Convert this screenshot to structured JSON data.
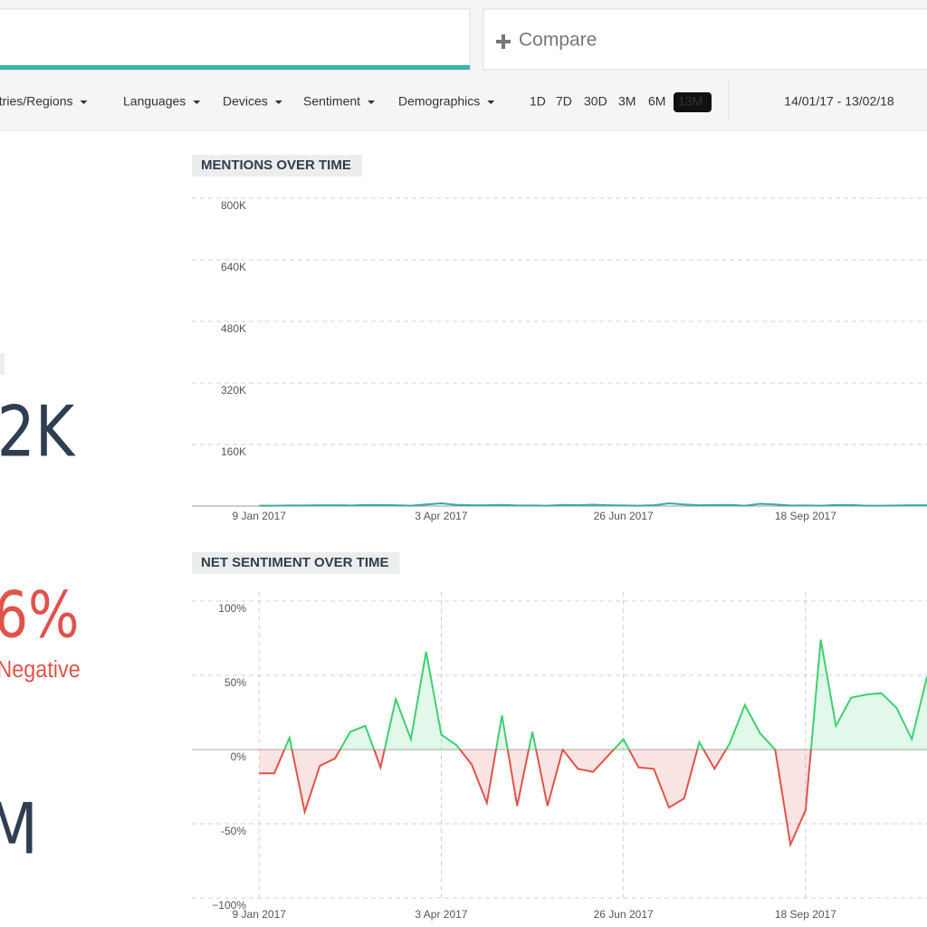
{
  "compare": "Compare",
  "filters": [
    "ntries/Regions",
    "Languages",
    "Devices",
    "Sentiment",
    "Demographics"
  ],
  "ranges": [
    {
      "label": "1D"
    },
    {
      "label": "7D"
    },
    {
      "label": "30D"
    },
    {
      "label": "3M"
    },
    {
      "label": "6M"
    },
    {
      "label": "13M",
      "selected": true
    }
  ],
  "date_range": "14/01/17 - 13/02/18",
  "summary": {
    "mentions": "2K",
    "sentiment": "6%",
    "sentiment_label": "Negative",
    "reach": "M"
  },
  "chart_data": [
    {
      "type": "line",
      "title": "MENTIONS OVER TIME",
      "x": [
        "2017-01-09",
        "2017-01-16",
        "2017-01-23",
        "2017-01-30",
        "2017-02-06",
        "2017-02-13",
        "2017-02-20",
        "2017-02-27",
        "2017-03-06",
        "2017-03-13",
        "2017-03-20",
        "2017-03-27",
        "2017-04-03",
        "2017-04-10",
        "2017-04-17",
        "2017-04-24",
        "2017-05-01",
        "2017-05-08",
        "2017-05-15",
        "2017-05-22",
        "2017-05-29",
        "2017-06-05",
        "2017-06-12",
        "2017-06-19",
        "2017-06-26",
        "2017-07-03",
        "2017-07-10",
        "2017-07-17",
        "2017-07-24",
        "2017-07-31",
        "2017-08-07",
        "2017-08-14",
        "2017-08-21",
        "2017-08-28",
        "2017-09-04",
        "2017-09-11",
        "2017-09-18",
        "2017-09-25",
        "2017-10-02",
        "2017-10-09",
        "2017-10-16",
        "2017-10-23",
        "2017-10-30",
        "2017-11-06",
        "2017-11-13"
      ],
      "series": [
        {
          "color": "#3aa9a0",
          "values": [
            1000,
            1000,
            1500,
            1500,
            2000,
            2000,
            1500,
            2500,
            2500,
            2000,
            1000,
            4000,
            7000,
            3000,
            2000,
            2000,
            3000,
            1500,
            1500,
            1000,
            3000,
            2000,
            3500,
            2000,
            1500,
            1000,
            2000,
            7000,
            4000,
            2000,
            2500,
            3000,
            1000,
            6000,
            4000,
            1500,
            1500,
            1000,
            2500,
            2500,
            1000,
            1000,
            1500,
            2000,
            2000
          ]
        }
      ],
      "xlim": [
        "2016-12-09",
        "2017-11-13"
      ],
      "xticks": [
        {
          "value": "2017-01-09",
          "label": "9 Jan 2017"
        },
        {
          "value": "2017-04-03",
          "label": "3 Apr 2017"
        },
        {
          "value": "2017-06-26",
          "label": "26 Jun 2017"
        },
        {
          "value": "2017-09-18",
          "label": "18 Sep 2017"
        }
      ],
      "ylim": [
        0,
        800000
      ],
      "yticks": [
        {
          "value": 160000,
          "label": "160K"
        },
        {
          "value": 320000,
          "label": "320K"
        },
        {
          "value": 480000,
          "label": "480K"
        },
        {
          "value": 640000,
          "label": "640K"
        },
        {
          "value": 800000,
          "label": "800K"
        }
      ],
      "grid": true
    },
    {
      "type": "sentiment",
      "title": "NET SENTIMENT OVER TIME",
      "x": [
        "2017-01-09",
        "2017-01-16",
        "2017-01-23",
        "2017-01-30",
        "2017-02-06",
        "2017-02-13",
        "2017-02-20",
        "2017-02-27",
        "2017-03-06",
        "2017-03-13",
        "2017-03-20",
        "2017-03-27",
        "2017-04-03",
        "2017-04-10",
        "2017-04-17",
        "2017-04-24",
        "2017-05-01",
        "2017-05-08",
        "2017-05-15",
        "2017-05-22",
        "2017-05-29",
        "2017-06-05",
        "2017-06-12",
        "2017-06-19",
        "2017-06-26",
        "2017-07-03",
        "2017-07-10",
        "2017-07-17",
        "2017-07-24",
        "2017-07-31",
        "2017-08-07",
        "2017-08-14",
        "2017-08-21",
        "2017-08-28",
        "2017-09-04",
        "2017-09-11",
        "2017-09-18",
        "2017-09-25",
        "2017-10-02",
        "2017-10-09",
        "2017-10-16",
        "2017-10-23",
        "2017-10-30",
        "2017-11-06",
        "2017-11-13"
      ],
      "series": [
        {
          "color": "#3ecf72",
          "negative_color": "#e0534a",
          "values": [
            -16,
            -16,
            8,
            -42,
            -11,
            -6,
            12,
            16,
            -12,
            34,
            7,
            66,
            10,
            3,
            -10,
            -36,
            23,
            -38,
            12,
            -38,
            0,
            -13,
            -15,
            -4,
            7,
            -12,
            -13,
            -39,
            -33,
            5,
            -13,
            4,
            30,
            11,
            0,
            -64,
            -41,
            74,
            16,
            35,
            37,
            38,
            28,
            7,
            49
          ]
        }
      ],
      "xlim": [
        "2016-12-09",
        "2017-11-13"
      ],
      "xticks": [
        {
          "value": "2017-01-09",
          "label": "9 Jan 2017"
        },
        {
          "value": "2017-04-03",
          "label": "3 Apr 2017"
        },
        {
          "value": "2017-06-26",
          "label": "26 Jun 2017"
        },
        {
          "value": "2017-09-18",
          "label": "18 Sep 2017"
        }
      ],
      "ylim": [
        -100,
        100
      ],
      "yticks": [
        {
          "value": -100,
          "label": "−100%"
        },
        {
          "value": -50,
          "label": "-50%"
        },
        {
          "value": 0,
          "label": "0%"
        },
        {
          "value": 50,
          "label": "50%"
        },
        {
          "value": 100,
          "label": "100%"
        }
      ],
      "grid": true
    }
  ]
}
